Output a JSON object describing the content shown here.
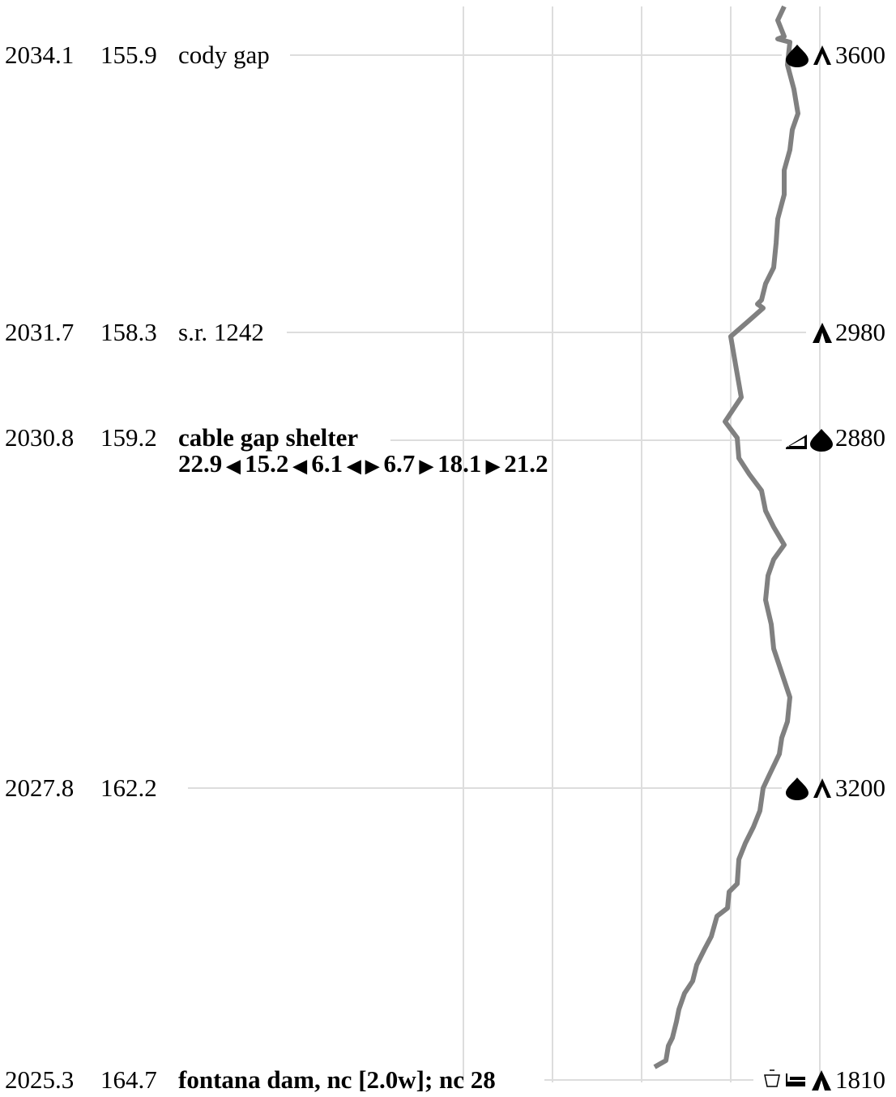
{
  "waypoints": [
    {
      "nobo": "2034.1",
      "sobo": "155.9",
      "name": "cody gap",
      "elevation": "3600"
    },
    {
      "nobo": "2031.7",
      "sobo": "158.3",
      "name": "s.r. 1242",
      "elevation": "2980"
    },
    {
      "nobo": "2030.8",
      "sobo": "159.2",
      "name": "cable gap shelter",
      "elevation": "2880",
      "distances_back": [
        "22.9",
        "15.2",
        "6.1"
      ],
      "distances_ahead": [
        "6.7",
        "18.1",
        "21.2"
      ]
    },
    {
      "nobo": "2027.8",
      "sobo": "162.2",
      "name": "",
      "elevation": "3200"
    },
    {
      "nobo": "2025.3",
      "sobo": "164.7",
      "name": "fontana dam, nc [2.0w]; nc 28",
      "elevation": "1810"
    }
  ]
}
